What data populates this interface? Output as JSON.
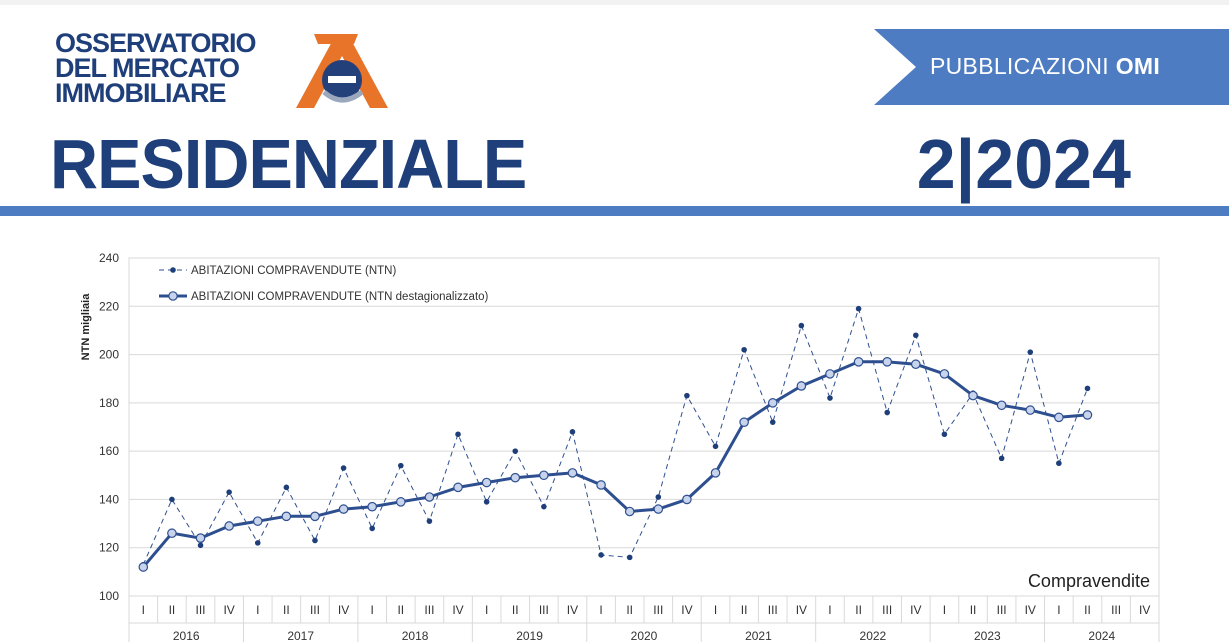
{
  "header": {
    "logo_lines": [
      "OSSERVATORIO",
      "DEL MERCATO",
      "IMMOBILIARE"
    ],
    "publication_prefix": "PUBBLICAZIONI",
    "publication_bold": "OMI",
    "title": "RESIDENZIALE",
    "edition": "2|2024"
  },
  "colors": {
    "brand_blue": "#1f3f7a",
    "banner_blue": "#4e7cc2",
    "series_blue": "#2e4f8f",
    "marker_fill": "#c7d4ec",
    "logo_orange": "#e8742a",
    "grid": "#d9d9d9"
  },
  "chart_data": {
    "type": "line",
    "title": "",
    "ylabel": "NTN migliaia",
    "xlabel": "",
    "corner_label": "Compravendite",
    "ylim": [
      100,
      240
    ],
    "yticks": [
      100,
      120,
      140,
      160,
      180,
      200,
      220,
      240
    ],
    "grid": true,
    "legend_position": "top-left",
    "quarters": [
      "I",
      "II",
      "III",
      "IV",
      "I",
      "II",
      "III",
      "IV",
      "I",
      "II",
      "III",
      "IV",
      "I",
      "II",
      "III",
      "IV",
      "I",
      "II",
      "III",
      "IV",
      "I",
      "II",
      "III",
      "IV",
      "I",
      "II",
      "III",
      "IV",
      "I",
      "II",
      "III",
      "IV",
      "I",
      "II",
      "III",
      "IV"
    ],
    "years": [
      "2016",
      "2017",
      "2018",
      "2019",
      "2020",
      "2021",
      "2022",
      "2023",
      "2024"
    ],
    "series": [
      {
        "name": "ABITAZIONI COMPRAVENDUTE (NTN)",
        "style": "dashed-dot",
        "values": [
          113,
          140,
          121,
          143,
          122,
          145,
          123,
          153,
          128,
          154,
          131,
          167,
          139,
          160,
          137,
          168,
          117,
          116,
          141,
          183,
          162,
          202,
          172,
          212,
          182,
          219,
          176,
          208,
          167,
          184,
          157,
          201,
          155,
          186,
          null,
          null
        ]
      },
      {
        "name": "ABITAZIONI COMPRAVENDUTE (NTN destagionalizzato)",
        "style": "solid-circle",
        "values": [
          112,
          126,
          124,
          129,
          131,
          133,
          133,
          136,
          137,
          139,
          141,
          145,
          147,
          149,
          150,
          151,
          146,
          135,
          136,
          140,
          151,
          172,
          180,
          187,
          192,
          197,
          197,
          196,
          192,
          183,
          179,
          177,
          174,
          175,
          null,
          null
        ]
      }
    ]
  }
}
